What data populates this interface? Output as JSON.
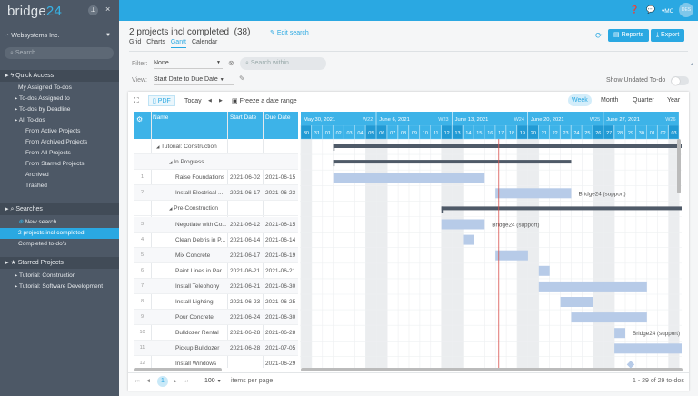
{
  "app": {
    "logo": "bridge24",
    "colors": {
      "brand": "#2aa8e2",
      "sidebar": "#4d5866",
      "bar": "#b7cbe8",
      "summary": "#4f5a68",
      "today": "#d9534f"
    }
  },
  "sidebar": {
    "workspace": "Websystems Inc.",
    "search_placeholder": "Search...",
    "quick_access": "Quick Access",
    "quick_items": [
      "My Assigned To-dos",
      "To-dos Assigned to",
      "To-dos by Deadline",
      "All To-dos",
      "From Active Projects",
      "From Archived Projects",
      "From All Projects",
      "From Starred Projects",
      "Archived",
      "Trashed"
    ],
    "searches": "Searches",
    "new_search": "New search...",
    "search_items": [
      "2 projects incl completed",
      "Completed to-do's"
    ],
    "starred": "Starred Projects",
    "starred_items": [
      "Tutorial: Construction",
      "Tutorial: Software Development"
    ]
  },
  "topbar": {
    "user": "MC",
    "avatar": "DES"
  },
  "header": {
    "title": "2 projects incl completed",
    "count": "(38)",
    "edit": "Edit search",
    "tabs": [
      "Grid",
      "Charts",
      "Gantt",
      "Calendar"
    ],
    "active_tab": "Gantt",
    "reports": "Reports",
    "export": "Export"
  },
  "filters": {
    "filter_label": "Filter:",
    "filter_value": "None",
    "search_placeholder": "Search within...",
    "view_label": "View:",
    "view_value": "Start Date to Due Date",
    "show_undated": "Show Undated To-do"
  },
  "toolbar": {
    "pdf": "PDF",
    "today": "Today",
    "freeze": "Freeze a date range",
    "scales": [
      "Week",
      "Month",
      "Quarter",
      "Year"
    ],
    "active_scale": "Week"
  },
  "grid": {
    "columns": [
      "Name",
      "Start Date",
      "Due Date"
    ],
    "rows": [
      {
        "num": "",
        "name": "Tutorial: Construction",
        "start": "",
        "due": "",
        "level": 0,
        "group": true
      },
      {
        "num": "",
        "name": "In Progress",
        "start": "",
        "due": "",
        "level": 1,
        "group": true
      },
      {
        "num": "1",
        "name": "Raise Foundations",
        "start": "2021-06-02",
        "due": "2021-06-15"
      },
      {
        "num": "2",
        "name": "Install Electrical ...",
        "start": "2021-06-17",
        "due": "2021-06-23",
        "label": "Bridge24 (support)"
      },
      {
        "num": "",
        "name": "Pre-Construction",
        "start": "",
        "due": "",
        "level": 1,
        "group": true
      },
      {
        "num": "3",
        "name": "Negotiate with Co...",
        "start": "2021-06-12",
        "due": "2021-06-15",
        "label": "Bridge24 (support)"
      },
      {
        "num": "4",
        "name": "Clean Debris in P...",
        "start": "2021-06-14",
        "due": "2021-06-14"
      },
      {
        "num": "5",
        "name": "Mix Concrete",
        "start": "2021-06-17",
        "due": "2021-06-19"
      },
      {
        "num": "6",
        "name": "Paint Lines in Par...",
        "start": "2021-06-21",
        "due": "2021-06-21"
      },
      {
        "num": "7",
        "name": "Install Telephony",
        "start": "2021-06-21",
        "due": "2021-06-30"
      },
      {
        "num": "8",
        "name": "Install Lighting",
        "start": "2021-06-23",
        "due": "2021-06-25"
      },
      {
        "num": "9",
        "name": "Pour Concrete",
        "start": "2021-06-24",
        "due": "2021-06-30"
      },
      {
        "num": "10",
        "name": "Bulldozer Rental",
        "start": "2021-06-28",
        "due": "2021-06-28",
        "label": "Bridge24 (support)"
      },
      {
        "num": "11",
        "name": "Pickup Bulldozer",
        "start": "2021-06-28",
        "due": "2021-07-05"
      },
      {
        "num": "12",
        "name": "Install Windows",
        "start": "",
        "due": "2021-06-29",
        "milestone": true
      }
    ]
  },
  "timeline": {
    "weeks": [
      {
        "label": "May 30, 2021",
        "w": "W22"
      },
      {
        "label": "June 6, 2021",
        "w": "W23"
      },
      {
        "label": "June 13, 2021",
        "w": "W24"
      },
      {
        "label": "June 20, 2021",
        "w": "W25"
      },
      {
        "label": "June 27, 2021",
        "w": "W26"
      }
    ],
    "days": [
      "30",
      "31",
      "01",
      "02",
      "03",
      "04",
      "05",
      "06",
      "07",
      "08",
      "09",
      "10",
      "11",
      "12",
      "13",
      "14",
      "15",
      "16",
      "17",
      "18",
      "19",
      "20",
      "21",
      "22",
      "23",
      "24",
      "25",
      "26",
      "27",
      "28",
      "29",
      "30",
      "01",
      "02",
      "03"
    ],
    "first_day": "2021-05-30",
    "today": "2021-06-17",
    "summaries": [
      {
        "row": 0,
        "start": "2021-06-02",
        "end": "2021-07-10"
      },
      {
        "row": 1,
        "start": "2021-06-02",
        "end": "2021-06-23"
      },
      {
        "row": 4,
        "start": "2021-06-12",
        "end": "2021-07-10"
      }
    ]
  },
  "pager": {
    "page": "1",
    "per_page": "100",
    "per_page_label": "items per page",
    "summary": "1 - 29 of 29 to-dos"
  }
}
